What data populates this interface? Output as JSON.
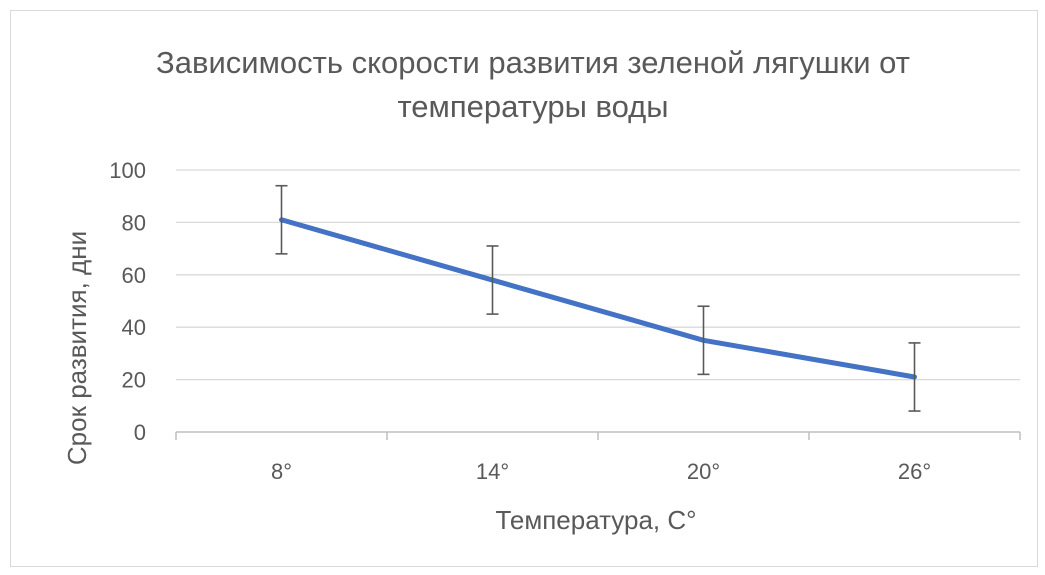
{
  "chart_data": {
    "type": "line",
    "title_lines": [
      "Зависимость скорости развития зеленой лягушки от",
      "температуры воды"
    ],
    "xlabel": "Температура, С°",
    "ylabel": "Срок развития, дни",
    "categories": [
      "8°",
      "14°",
      "20°",
      "26°"
    ],
    "values": [
      81,
      58,
      35,
      21
    ],
    "error_bars": [
      13,
      13,
      13,
      13
    ],
    "ylim": [
      0,
      100
    ],
    "yticks": [
      "0",
      "20",
      "40",
      "60",
      "80",
      "100"
    ],
    "grid": true,
    "legend": "none",
    "colors": {
      "line": "#4472c4",
      "grid": "#d9d9d9",
      "axis": "#bfbfbf",
      "error_bar": "#595959",
      "text": "#595959"
    }
  }
}
